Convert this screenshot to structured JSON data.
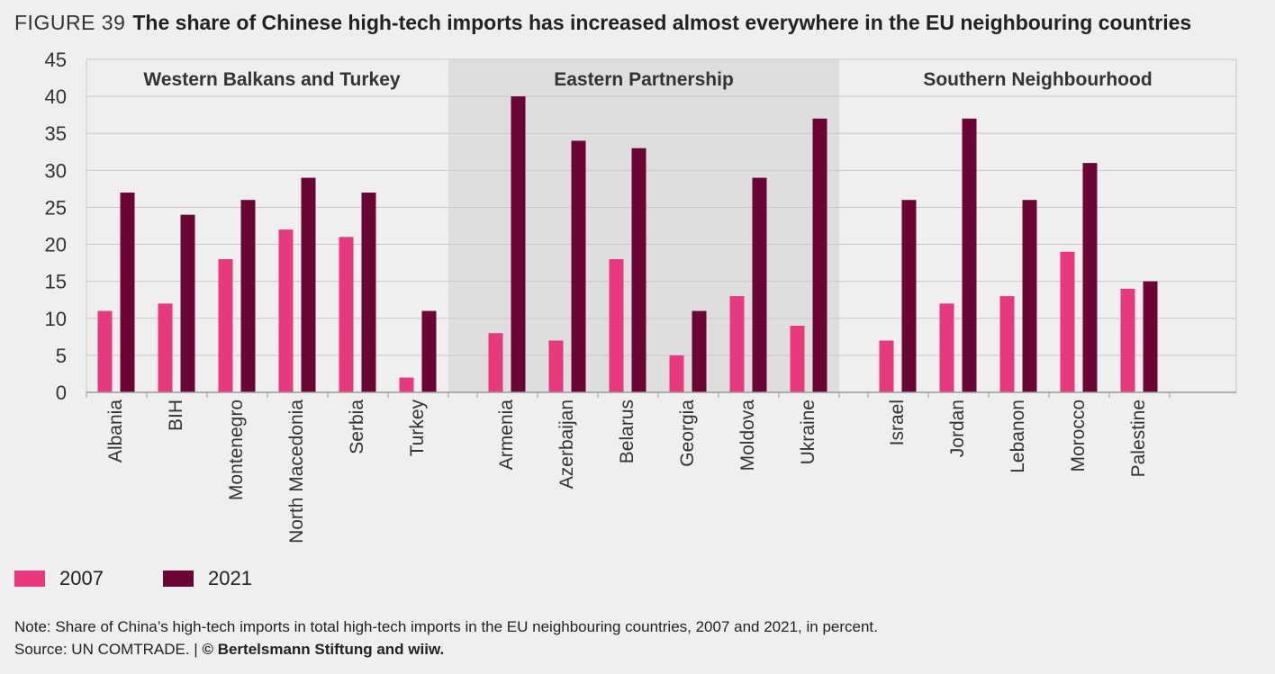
{
  "figure_label": "FIGURE 39",
  "title": "The share of Chinese high-tech imports has increased almost everywhere in the EU neighbouring countries",
  "colors": {
    "series_2007": "#e8397e",
    "series_2021": "#6b0535",
    "group_shade": "#dedede",
    "background": "#efefef"
  },
  "chart_data": {
    "type": "bar",
    "title": "The share of Chinese high-tech imports has increased almost everywhere in the EU neighbouring countries",
    "ylim": [
      0,
      45
    ],
    "yticks": [
      "0",
      "5",
      "10",
      "15",
      "20",
      "25",
      "30",
      "35",
      "40",
      "45"
    ],
    "grid": true,
    "series_names": [
      "2007",
      "2021"
    ],
    "groups": [
      {
        "name": "Western Balkans and Turkey",
        "shaded": false,
        "countries": [
          "Albania",
          "BIH",
          "Montenegro",
          "North Macedonia",
          "Serbia",
          "Turkey"
        ],
        "values_2007": [
          11,
          12,
          18,
          22,
          21,
          2
        ],
        "values_2021": [
          27,
          24,
          26,
          29,
          27,
          11
        ]
      },
      {
        "name": "Eastern Partnership",
        "shaded": true,
        "countries": [
          "Armenia",
          "Azerbaijan",
          "Belarus",
          "Georgia",
          "Moldova",
          "Ukraine"
        ],
        "values_2007": [
          8,
          7,
          18,
          5,
          13,
          9
        ],
        "values_2021": [
          40,
          34,
          33,
          11,
          29,
          37
        ]
      },
      {
        "name": "Southern Neighbourhood",
        "shaded": false,
        "countries": [
          "Israel",
          "Jordan",
          "Lebanon",
          "Morocco",
          "Palestine"
        ],
        "values_2007": [
          7,
          12,
          13,
          19,
          14
        ],
        "values_2021": [
          26,
          37,
          26,
          31,
          15
        ]
      }
    ]
  },
  "legend": {
    "item_2007": "2007",
    "item_2021": "2021"
  },
  "notes": {
    "note": "Note: Share of China’s high-tech imports in total high-tech imports in the EU neighbouring countries, 2007 and 2021, in percent.",
    "source_prefix": "Source: UN COMTRADE.  | ",
    "source_bold": "© Bertelsmann Stiftung and wiiw."
  }
}
